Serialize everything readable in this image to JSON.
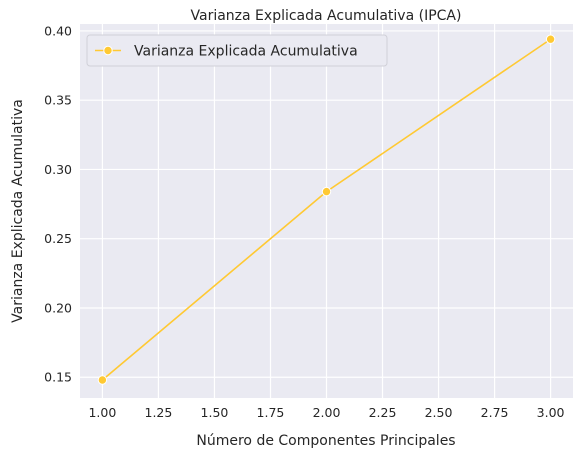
{
  "chart_data": {
    "type": "line",
    "title": "Varianza Explicada Acumulativa (IPCA)",
    "xlabel": "Número de Componentes Principales",
    "ylabel": "Varianza Explicada Acumulativa",
    "xlim": [
      0.9,
      3.1
    ],
    "ylim": [
      0.135,
      0.405
    ],
    "xticks": [
      "1.00",
      "1.25",
      "1.50",
      "1.75",
      "2.00",
      "2.25",
      "2.50",
      "2.75",
      "3.00"
    ],
    "xtick_values": [
      1.0,
      1.25,
      1.5,
      1.75,
      2.0,
      2.25,
      2.5,
      2.75,
      3.0
    ],
    "yticks": [
      "0.15",
      "0.20",
      "0.25",
      "0.30",
      "0.35",
      "0.40"
    ],
    "ytick_values": [
      0.15,
      0.2,
      0.25,
      0.3,
      0.35,
      0.4
    ],
    "grid": true,
    "legend_position": "top-left",
    "series": [
      {
        "name": "Varianza Explicada Acumulativa",
        "color": "#ffc933",
        "marker": "circle",
        "x": [
          1,
          2,
          3
        ],
        "y": [
          0.148,
          0.284,
          0.394
        ]
      }
    ]
  },
  "colors": {
    "plot_background": "#eaeaf2",
    "grid": "#ffffff",
    "text": "#262626"
  }
}
